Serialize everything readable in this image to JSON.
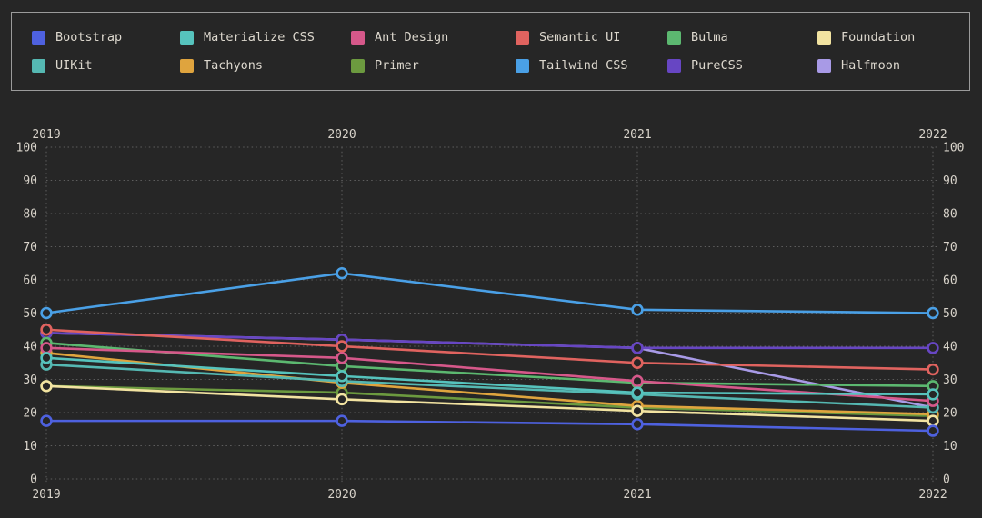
{
  "theme": {
    "background": "#262626",
    "text_color": "#d9d4cb",
    "grid_color": "#5e5e5e",
    "legend_border_color": "#9b9b9b",
    "marker_fill": "#262626"
  },
  "chart_data": {
    "type": "line",
    "title": "",
    "xlabel": "",
    "ylabel": "",
    "x": [
      "2019",
      "2020",
      "2021",
      "2022"
    ],
    "ylim": [
      0,
      100
    ],
    "yticks": [
      0,
      10,
      20,
      30,
      40,
      50,
      60,
      70,
      80,
      90,
      100
    ],
    "grid": "dotted",
    "legend_position": "top",
    "x_axis_labels": "top-and-bottom",
    "y_axis_labels": "left-and-right",
    "series": [
      {
        "name": "Bootstrap",
        "color": "#4e61df",
        "values": [
          17.5,
          17.5,
          16.5,
          14.5
        ]
      },
      {
        "name": "Materialize CSS",
        "color": "#56c3bd",
        "values": [
          36.5,
          31,
          26,
          25.5
        ]
      },
      {
        "name": "Ant Design",
        "color": "#d6588a",
        "values": [
          39.5,
          36.5,
          29.5,
          23.5
        ]
      },
      {
        "name": "Semantic UI",
        "color": "#e0635f",
        "values": [
          45,
          40,
          35,
          33
        ]
      },
      {
        "name": "Bulma",
        "color": "#5cb870",
        "values": [
          41,
          34,
          29,
          28
        ]
      },
      {
        "name": "Foundation",
        "color": "#f2e3a1",
        "values": [
          28,
          24,
          20.5,
          17.5
        ]
      },
      {
        "name": "UIKit",
        "color": "#55b8b2",
        "values": [
          34.5,
          29.5,
          25.5,
          21.5
        ]
      },
      {
        "name": "Tachyons",
        "color": "#dfa43e",
        "values": [
          38,
          29,
          22,
          19.5
        ]
      },
      {
        "name": "Primer",
        "color": "#6c9a3f",
        "values": [
          28,
          26,
          21.5,
          19
        ]
      },
      {
        "name": "Tailwind CSS",
        "color": "#4aa0e6",
        "values": [
          50,
          62,
          51,
          50
        ]
      },
      {
        "name": "PureCSS",
        "color": "#6746c3",
        "values": [
          44,
          42,
          39.5,
          39.5
        ]
      },
      {
        "name": "Halfmoon",
        "color": "#a89ae6",
        "values": [
          44,
          42,
          39.5,
          21.5
        ]
      }
    ]
  }
}
